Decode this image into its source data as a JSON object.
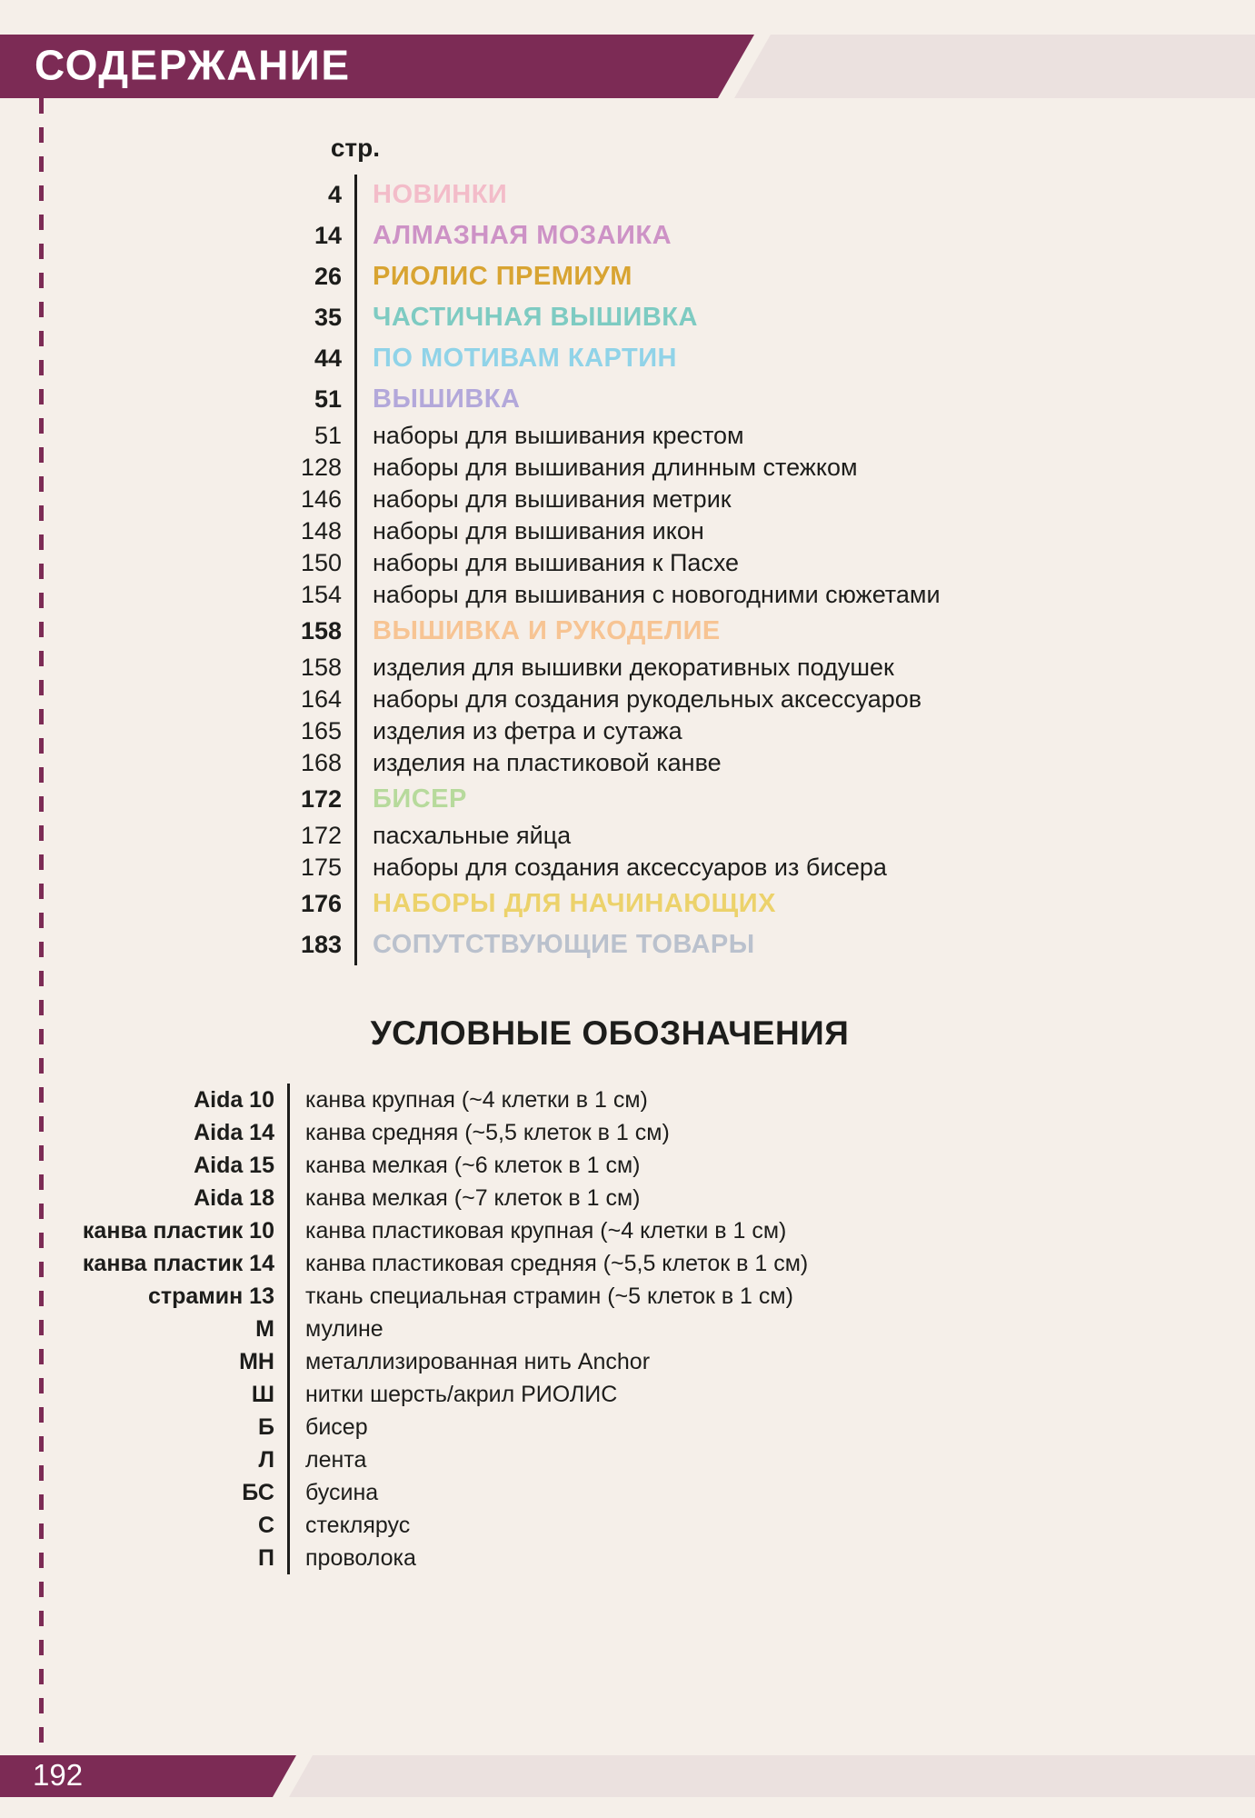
{
  "page": {
    "title": "СОДЕРЖАНИЕ",
    "page_number": "192",
    "colors": {
      "background": "#f5efe9",
      "accent": "#7c2b55",
      "band_light": "#ebe1df",
      "text": "#1d1d1b"
    }
  },
  "toc": {
    "column_header": "стр.",
    "rows": [
      {
        "page": "4",
        "title": "НОВИНКИ",
        "type": "section",
        "color": "#f3bcc9"
      },
      {
        "page": "14",
        "title": "АЛМАЗНАЯ МОЗАИКА",
        "type": "section",
        "color": "#cd92c6"
      },
      {
        "page": "26",
        "title": "РИОЛИС ПРЕМИУМ",
        "type": "section",
        "color": "#d8a432"
      },
      {
        "page": "35",
        "title": "ЧАСТИЧНАЯ ВЫШИВКА",
        "type": "section",
        "color": "#7ecbc2"
      },
      {
        "page": "44",
        "title": "ПО МОТИВАМ КАРТИН",
        "type": "section",
        "color": "#90d3e8"
      },
      {
        "page": "51",
        "title": "ВЫШИВКА",
        "type": "section",
        "color": "#b3a8da"
      },
      {
        "page": "51",
        "title": "наборы для вышивания крестом",
        "type": "item"
      },
      {
        "page": "128",
        "title": "наборы для вышивания длинным стежком",
        "type": "item"
      },
      {
        "page": "146",
        "title": "наборы для вышивания метрик",
        "type": "item"
      },
      {
        "page": "148",
        "title": "наборы для вышивания икон",
        "type": "item"
      },
      {
        "page": "150",
        "title": "наборы для вышивания к Пасхе",
        "type": "item"
      },
      {
        "page": "154",
        "title": "наборы для вышивания с новогодними сюжетами",
        "type": "item"
      },
      {
        "page": "158",
        "title": "ВЫШИВКА И РУКОДЕЛИЕ",
        "type": "section",
        "color": "#f7c493"
      },
      {
        "page": "158",
        "title": "изделия для вышивки декоративных подушек",
        "type": "item"
      },
      {
        "page": "164",
        "title": "наборы для создания рукодельных аксессуаров",
        "type": "item"
      },
      {
        "page": "165",
        "title": "изделия из фетра и сутажа",
        "type": "item"
      },
      {
        "page": "168",
        "title": "изделия на пластиковой канве",
        "type": "item"
      },
      {
        "page": "172",
        "title": "БИСЕР",
        "type": "section",
        "color": "#b7da9c"
      },
      {
        "page": "172",
        "title": "пасхальные яйца",
        "type": "item"
      },
      {
        "page": "175",
        "title": "наборы для создания аксессуаров из бисера",
        "type": "item"
      },
      {
        "page": "176",
        "title": "НАБОРЫ ДЛЯ НАЧИНАЮЩИХ",
        "type": "section",
        "color": "#ecd26b"
      },
      {
        "page": "183",
        "title": "СОПУТСТВУЮЩИЕ ТОВАРЫ",
        "type": "section",
        "color": "#bac1cd"
      }
    ]
  },
  "legend": {
    "heading": "УСЛОВНЫЕ ОБОЗНАЧЕНИЯ",
    "rows": [
      {
        "label": "Aida 10",
        "description": "канва крупная (~4 клетки в 1 см)"
      },
      {
        "label": "Aida 14",
        "description": "канва средняя (~5,5 клеток в 1 см)"
      },
      {
        "label": "Aida 15",
        "description": "канва мелкая (~6 клеток в 1 см)"
      },
      {
        "label": "Aida 18",
        "description": "канва мелкая (~7 клеток в 1 см)"
      },
      {
        "label": "канва пластик 10",
        "description": "канва пластиковая крупная (~4 клетки в 1 см)"
      },
      {
        "label": "канва пластик 14",
        "description": "канва пластиковая средняя (~5,5 клеток в 1 см)"
      },
      {
        "label": "страмин 13",
        "description": "ткань специальная страмин (~5 клеток в 1 см)"
      },
      {
        "label": "М",
        "description": "мулине"
      },
      {
        "label": "МН",
        "description": "металлизированная нить Anchor"
      },
      {
        "label": "Ш",
        "description": "нитки шерсть/акрил РИОЛИС"
      },
      {
        "label": "Б",
        "description": "бисер"
      },
      {
        "label": "Л",
        "description": "лента"
      },
      {
        "label": "БС",
        "description": "бусина"
      },
      {
        "label": "С",
        "description": "стеклярус"
      },
      {
        "label": "П",
        "description": "проволока"
      }
    ]
  }
}
